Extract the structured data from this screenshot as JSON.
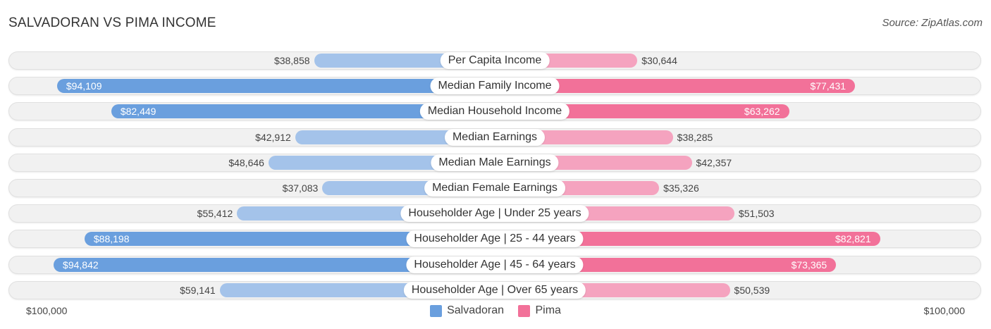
{
  "title": "SALVADORAN VS PIMA INCOME",
  "source": "Source: ZipAtlas.com",
  "colors": {
    "left_light": "#a4c3ea",
    "left_strong": "#6a9fde",
    "right_light": "#f5a3bf",
    "right_strong": "#f27199"
  },
  "chart_data": {
    "type": "bar",
    "orientation": "horizontal-diverging",
    "title": "SALVADORAN VS PIMA INCOME",
    "categories": [
      "Per Capita Income",
      "Median Family Income",
      "Median Household Income",
      "Median Earnings",
      "Median Male Earnings",
      "Median Female Earnings",
      "Householder Age | Under 25 years",
      "Householder Age | 25 - 44 years",
      "Householder Age | 45 - 64 years",
      "Householder Age | Over 65 years"
    ],
    "series": [
      {
        "name": "Salvadoran",
        "values": [
          38858,
          94109,
          82449,
          42912,
          48646,
          37083,
          55412,
          88198,
          94842,
          59141
        ],
        "labels": [
          "$38,858",
          "$94,109",
          "$82,449",
          "$42,912",
          "$48,646",
          "$37,083",
          "$55,412",
          "$88,198",
          "$94,842",
          "$59,141"
        ]
      },
      {
        "name": "Pima",
        "values": [
          30644,
          77431,
          63262,
          38285,
          42357,
          35326,
          51503,
          82821,
          73365,
          50539
        ],
        "labels": [
          "$30,644",
          "$77,431",
          "$63,262",
          "$38,285",
          "$42,357",
          "$35,326",
          "$51,503",
          "$82,821",
          "$73,365",
          "$50,539"
        ]
      }
    ],
    "axis": {
      "max": 100000,
      "left_label": "$100,000",
      "right_label": "$100,000"
    },
    "legend": [
      "Salvadoran",
      "Pima"
    ],
    "legend_position": "bottom-center"
  }
}
